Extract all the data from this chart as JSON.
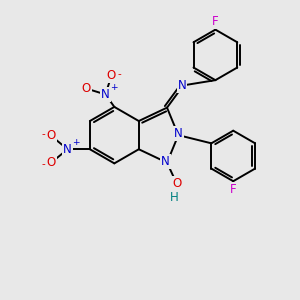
{
  "bg_color": "#e8e8e8",
  "bond_color": "#000000",
  "bond_width": 1.4,
  "atom_colors": {
    "N": "#0000cc",
    "O": "#dd0000",
    "F": "#cc00cc",
    "C": "#000000",
    "H": "#008080"
  },
  "font_size_atom": 8.5,
  "font_size_charge": 6.5
}
